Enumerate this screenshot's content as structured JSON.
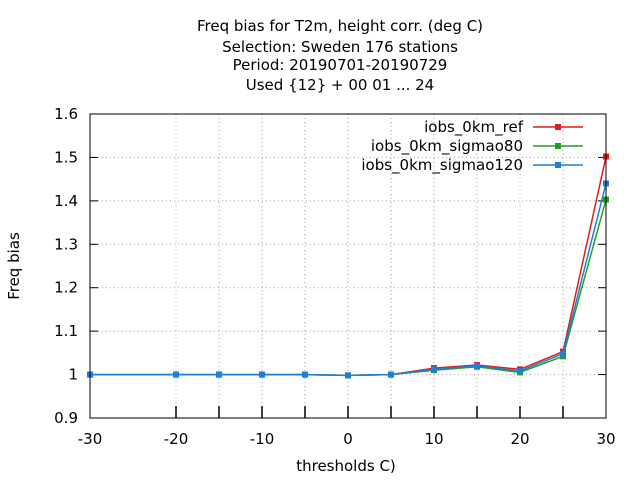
{
  "chart_data": {
    "type": "line",
    "title_lines": [
      "Freq bias  for T2m, height corr. (deg C)",
      "Selection: Sweden    176 stations",
      "Period: 20190701-20190729",
      "Used {12} + 00 01 ... 24"
    ],
    "xlabel": "thresholds C)",
    "ylabel": "Freq bias",
    "xlim": [
      -30,
      30
    ],
    "ylim": [
      0.9,
      1.6
    ],
    "xticks": [
      -30,
      -20,
      -10,
      0,
      10,
      20,
      30
    ],
    "yticks": [
      0.9,
      1,
      1.1,
      1.2,
      1.3,
      1.4,
      1.5,
      1.6
    ],
    "ytick_labels": [
      "0.9",
      "1",
      "1.1",
      "1.2",
      "1.3",
      "1.4",
      "1.5",
      "1.6"
    ],
    "x_minor_gridlines": [
      -20,
      -15,
      -10,
      -5,
      0,
      5,
      10,
      15,
      20,
      25
    ],
    "grid": true,
    "legend_position": "top-right",
    "x": [
      -30,
      -20,
      -15,
      -10,
      -5,
      0,
      5,
      10,
      15,
      20,
      25,
      30
    ],
    "series": [
      {
        "name": "iobs_0km_ref",
        "color": "#e41a1c",
        "values": [
          1.0,
          1.0,
          1.0,
          1.0,
          1.0,
          0.998,
          1.0,
          1.015,
          1.022,
          1.012,
          1.053,
          1.502
        ]
      },
      {
        "name": "iobs_0km_sigmao80",
        "color": "#22a022",
        "values": [
          1.0,
          1.0,
          1.0,
          1.0,
          1.0,
          0.998,
          1.0,
          1.01,
          1.018,
          1.005,
          1.042,
          1.403
        ]
      },
      {
        "name": "iobs_0km_sigmao120",
        "color": "#1f7fd6",
        "values": [
          1.0,
          1.0,
          1.0,
          1.0,
          1.0,
          0.998,
          1.0,
          1.012,
          1.02,
          1.008,
          1.048,
          1.44
        ]
      }
    ]
  }
}
